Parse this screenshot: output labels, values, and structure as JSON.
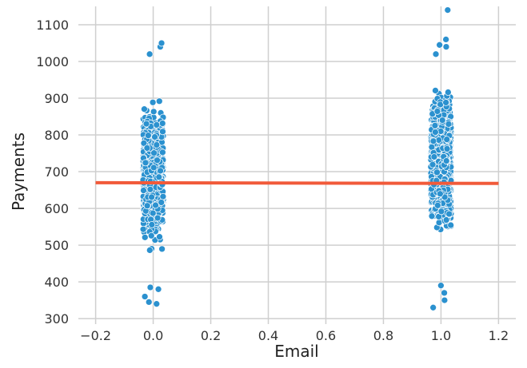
{
  "chart_data": {
    "type": "scatter",
    "title": "",
    "xlabel": "Email",
    "ylabel": "Payments",
    "xlim": [
      -0.26,
      1.26
    ],
    "ylim": [
      285,
      1150
    ],
    "x_ticks": [
      -0.2,
      0.0,
      0.2,
      0.4,
      0.6,
      0.8,
      1.0,
      1.2
    ],
    "x_tick_labels": [
      "−0.2",
      "0.0",
      "0.2",
      "0.4",
      "0.6",
      "0.8",
      "1.0",
      "1.2"
    ],
    "y_ticks": [
      300,
      400,
      500,
      600,
      700,
      800,
      900,
      1000,
      1100
    ],
    "y_tick_labels": [
      "300",
      "400",
      "500",
      "600",
      "700",
      "800",
      "900",
      "1000",
      "1100"
    ],
    "grid": true,
    "groups": [
      {
        "x": 0,
        "y_range": [
          340,
          1050
        ],
        "approx_points": 1000,
        "outliers_y": [
          340,
          345,
          360,
          380,
          385,
          1020,
          1040,
          1050
        ]
      },
      {
        "x": 1,
        "y_range": [
          330,
          1140
        ],
        "approx_points": 1000,
        "outliers_y": [
          330,
          350,
          370,
          390,
          1020,
          1040,
          1045,
          1060,
          1140
        ]
      }
    ],
    "regression_line": {
      "x": [
        -0.2,
        1.2
      ],
      "y": [
        670,
        668
      ]
    },
    "colors": {
      "points": "#2b91cf",
      "line": "#f15a3a",
      "grid": "#cfcfcf"
    }
  }
}
